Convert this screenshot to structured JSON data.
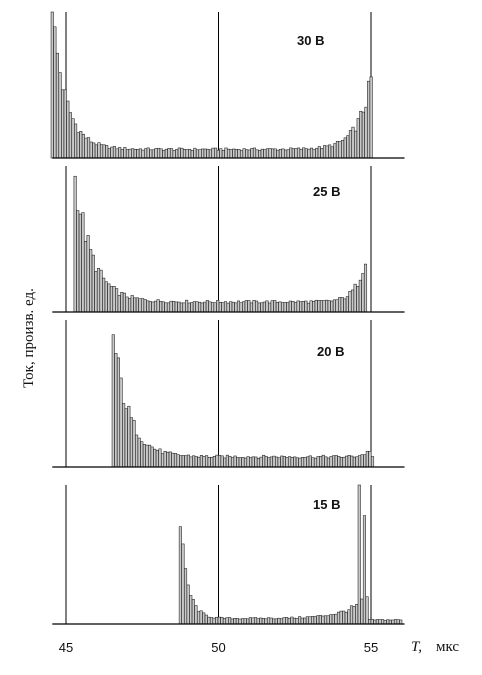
{
  "chart_data": {
    "type": "bar",
    "ylabel": "Ток,  произв. ед.",
    "xlabel_symbol": "T,",
    "xlabel_unit": "мкс",
    "xlim": [
      44.5,
      56.2
    ],
    "x_ticks": [
      45,
      50,
      55
    ],
    "x_tick_labels": [
      "45",
      "50",
      "55"
    ],
    "reference_lines_x": [
      45,
      50,
      55
    ],
    "ylim": [
      0,
      1
    ],
    "panels": [
      {
        "label": "30 В",
        "onset": 44.55,
        "end": 55.05,
        "peak": 1.0,
        "floor": 0.06,
        "decay": 0.45,
        "end_peak": 0.65,
        "end_width": 0.45,
        "extra_spikes": []
      },
      {
        "label": "25 В",
        "onset": 45.3,
        "end": 54.85,
        "peak": 0.93,
        "floor": 0.07,
        "decay": 0.55,
        "end_peak": 0.45,
        "end_width": 0.3,
        "extra_spikes": []
      },
      {
        "label": "20 В",
        "onset": 46.55,
        "end": 55.05,
        "peak": 0.9,
        "floor": 0.07,
        "decay": 0.5,
        "end_peak": 0.15,
        "end_width": 0.2,
        "extra_spikes": []
      },
      {
        "label": "15 В",
        "onset": 48.75,
        "end": 56.0,
        "peak": 0.7,
        "floor": 0.04,
        "decay": 0.25,
        "end_peak": 0.9,
        "end_width": 0.7,
        "extra_spikes": [
          [
            54.65,
            1.0
          ],
          [
            54.8,
            0.75
          ]
        ]
      }
    ]
  }
}
